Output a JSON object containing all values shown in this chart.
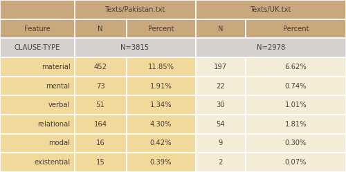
{
  "header_row1_pak": "Texts/Pakistan.txt",
  "header_row1_uk": "Texts/UK.txt",
  "header_row2": [
    "Feature",
    "N",
    "Percent",
    "N",
    "Percent"
  ],
  "clause_row_left": "CLAUSE-TYPE",
  "clause_row_pak": "N=3815",
  "clause_row_uk": "N=2978",
  "data_rows": [
    [
      "material",
      "452",
      "11.85%",
      "197",
      "6.62%"
    ],
    [
      "mental",
      "73",
      "1.91%",
      "22",
      "0.74%"
    ],
    [
      "verbal",
      "51",
      "1.34%",
      "30",
      "1.01%"
    ],
    [
      "relational",
      "164",
      "4.30%",
      "54",
      "1.81%"
    ],
    [
      "modal",
      "16",
      "0.42%",
      "9",
      "0.30%"
    ],
    [
      "existential",
      "15",
      "0.39%",
      "2",
      "0.07%"
    ]
  ],
  "col_bounds": [
    0.0,
    0.215,
    0.365,
    0.565,
    0.71,
    1.0
  ],
  "header_bg": "#C8A87C",
  "clause_bg": "#D4D0CE",
  "data_bg_left": "#F0D99A",
  "data_bg_right": "#F5ECD8",
  "border_color": "#FFFFFF",
  "text_color": "#4A3F35",
  "fig_bg": "#F5ECD8",
  "n_rows": 9,
  "fontsize": 7.2
}
